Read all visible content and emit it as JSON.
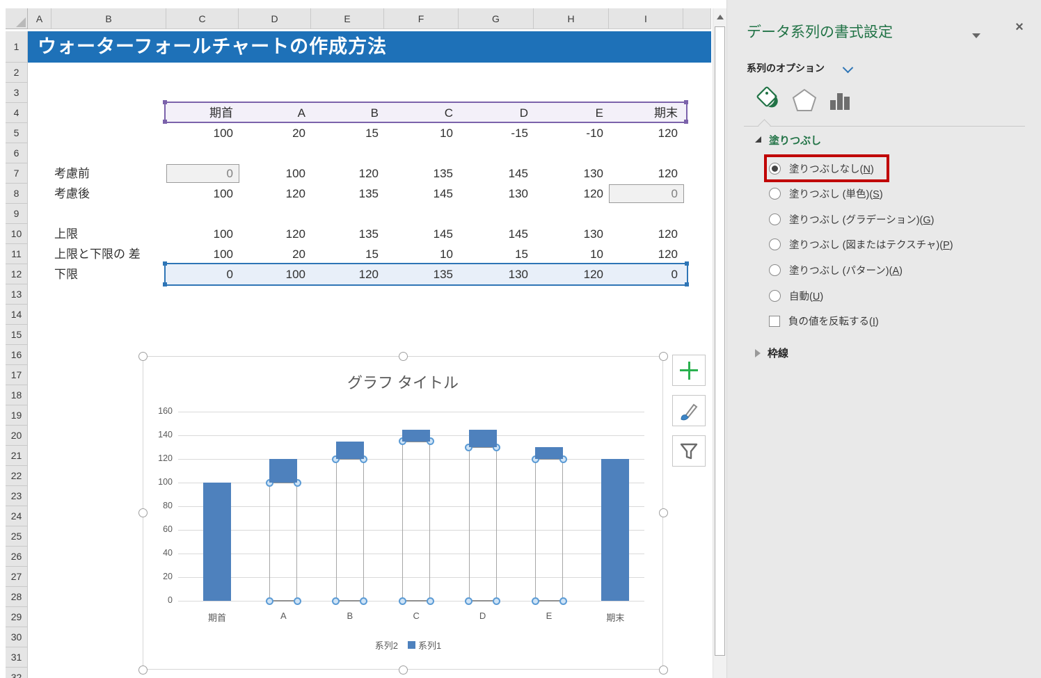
{
  "colors": {
    "title_bar": "#1e71b8",
    "bar_blue": "#4e81bd",
    "excel_green": "#217346",
    "selection_purple": "#7b62ab",
    "selection_blue": "#2e75b6",
    "highlight_red": "#c00000"
  },
  "spreadsheet": {
    "column_headers": [
      "A",
      "B",
      "C",
      "D",
      "E",
      "F",
      "G",
      "H",
      "I",
      ""
    ],
    "row_numbers": [
      "1",
      "2",
      "3",
      "4",
      "5",
      "6",
      "7",
      "8",
      "9",
      "10",
      "11",
      "12",
      "13",
      "14",
      "15",
      "16",
      "17",
      "18",
      "19",
      "20",
      "21",
      "22",
      "23",
      "24",
      "25",
      "26",
      "27",
      "28",
      "29",
      "30",
      "31",
      "32"
    ],
    "title": "ウォーターフォールチャートの作成方法",
    "table": {
      "header_row": {
        "row": 4,
        "values": [
          "期首",
          "A",
          "B",
          "C",
          "D",
          "E",
          "期末"
        ]
      },
      "rows": [
        {
          "row": 5,
          "label": "",
          "values": [
            "100",
            "20",
            "15",
            "10",
            "-15",
            "-10",
            "120"
          ]
        },
        {
          "row": 7,
          "label": "考慮前",
          "values": [
            "0",
            "100",
            "120",
            "135",
            "145",
            "130",
            "120"
          ],
          "gray_box": 0
        },
        {
          "row": 8,
          "label": "考慮後",
          "values": [
            "100",
            "120",
            "135",
            "145",
            "130",
            "120",
            "0"
          ],
          "gray_box": 6
        },
        {
          "row": 10,
          "label": "上限",
          "values": [
            "100",
            "120",
            "135",
            "145",
            "145",
            "130",
            "120"
          ]
        },
        {
          "row": 11,
          "label": "上限と下限の 差",
          "values": [
            "100",
            "20",
            "15",
            "10",
            "15",
            "10",
            "120"
          ]
        },
        {
          "row": 12,
          "label": "下限",
          "values": [
            "0",
            "100",
            "120",
            "135",
            "130",
            "120",
            "0"
          ]
        }
      ]
    }
  },
  "chart_data": {
    "type": "bar",
    "stacked": true,
    "title": "グラフ タイトル",
    "categories": [
      "期首",
      "A",
      "B",
      "C",
      "D",
      "E",
      "期末"
    ],
    "series": [
      {
        "name": "系列2",
        "values": [
          0,
          100,
          120,
          135,
          130,
          120,
          0
        ],
        "fill": "none"
      },
      {
        "name": "系列1",
        "values": [
          100,
          20,
          15,
          10,
          15,
          10,
          120
        ],
        "fill": "#4e81bd"
      }
    ],
    "ylim": [
      0,
      160
    ],
    "ytick_step": 20,
    "grid": "horizontal",
    "legend_position": "bottom",
    "legend": [
      "系列2",
      "系列1"
    ]
  },
  "panel": {
    "title": "データ系列の書式設定",
    "close_glyph": "×",
    "section_label": "系列のオプション",
    "tab_icons": [
      "paint-bucket",
      "pentagon",
      "bar-chart"
    ],
    "fill_header": "塗りつぶし",
    "fill_options": [
      {
        "pre": "塗りつぶしなし(",
        "key": "N",
        "post": ")",
        "type": "radio",
        "selected": true
      },
      {
        "pre": "塗りつぶし (単色)(",
        "key": "S",
        "post": ")",
        "type": "radio",
        "selected": false
      },
      {
        "pre": "塗りつぶし (グラデーション)(",
        "key": "G",
        "post": ")",
        "type": "radio",
        "selected": false
      },
      {
        "pre": "塗りつぶし (図またはテクスチャ)(",
        "key": "P",
        "post": ")",
        "type": "radio",
        "selected": false
      },
      {
        "pre": "塗りつぶし (パターン)(",
        "key": "A",
        "post": ")",
        "type": "radio",
        "selected": false
      },
      {
        "pre": "自動(",
        "key": "U",
        "post": ")",
        "type": "radio",
        "selected": false
      },
      {
        "pre": "負の値を反転する(",
        "key": "I",
        "post": ")",
        "type": "checkbox",
        "selected": false
      }
    ],
    "border_header": "枠線"
  }
}
